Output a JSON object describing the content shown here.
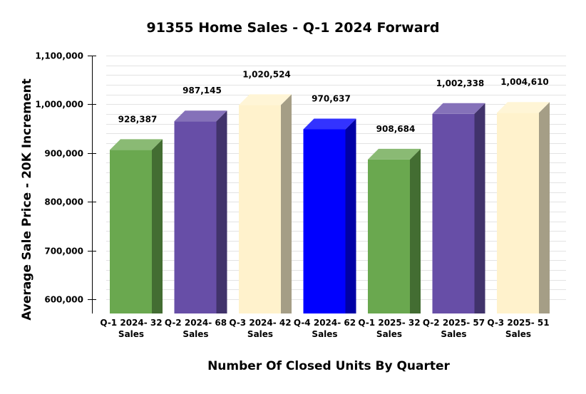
{
  "chart_data": {
    "type": "bar",
    "title": "91355 Home Sales - Q-1 2024 Forward",
    "xlabel": "Number Of Closed Units By Quarter",
    "ylabel": "Average Sale Price - 20K Increment",
    "ylim": [
      580000,
      1100000
    ],
    "yticks": [
      600000,
      700000,
      800000,
      900000,
      1000000,
      1100000
    ],
    "ytick_labels": [
      "600,000",
      "700,000",
      "800,000",
      "900,000",
      "1,000,000",
      "1,100,000"
    ],
    "grid_step": 20000,
    "grid": true,
    "legend": null,
    "categories": [
      [
        "Q-1 2024- 32",
        "Sales"
      ],
      [
        "Q-2 2024- 68",
        "Sales"
      ],
      [
        "Q-3 2024- 42",
        "Sales"
      ],
      [
        "Q-4 2024- 62",
        "Sales"
      ],
      [
        "Q-1 2025- 32",
        "Sales"
      ],
      [
        "Q-2 2025- 57",
        "Sales"
      ],
      [
        "Q-3 2025- 51",
        "Sales"
      ]
    ],
    "values": [
      928387,
      987145,
      1020524,
      970637,
      908684,
      1002338,
      1004610
    ],
    "value_labels": [
      "928,387",
      "987,145",
      "1,020,524",
      "970,637",
      "908,684",
      "1,002,338",
      "1,004,610"
    ],
    "closed_units": [
      32,
      68,
      42,
      62,
      32,
      57,
      51
    ],
    "bar_colors": [
      {
        "front": "#6aa84f",
        "top": "#8aba74",
        "side": "#436d32"
      },
      {
        "front": "#674ea7",
        "top": "#8571b9",
        "side": "#41336b"
      },
      {
        "front": "#fff2cc",
        "top": "#fff5d6",
        "side": "#a59e86"
      },
      {
        "front": "#0000ff",
        "top": "#3333ff",
        "side": "#0000a6"
      },
      {
        "front": "#6aa84f",
        "top": "#8aba74",
        "side": "#436d32"
      },
      {
        "front": "#674ea7",
        "top": "#8571b9",
        "side": "#41336b"
      },
      {
        "front": "#fff2cc",
        "top": "#fff5d6",
        "side": "#a59e86"
      }
    ]
  }
}
